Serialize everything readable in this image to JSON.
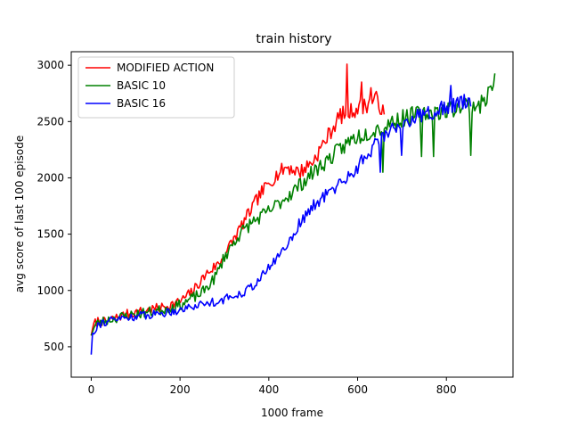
{
  "chart_data": {
    "type": "line",
    "title": "train history",
    "xlabel": "1000 frame",
    "ylabel": "avg score of last 100 episode",
    "xlim": [
      -45,
      950
    ],
    "ylim": [
      230,
      3120
    ],
    "xticks": [
      0,
      200,
      400,
      600,
      800
    ],
    "yticks": [
      500,
      1000,
      1500,
      2000,
      2500,
      3000
    ],
    "grid": false,
    "legend": {
      "position": "upper-left"
    },
    "series": [
      {
        "name": "MODIFIED ACTION",
        "color": "#ff0000",
        "end_x": 660,
        "anchors": [
          [
            0,
            600
          ],
          [
            5,
            700
          ],
          [
            15,
            730
          ],
          [
            30,
            720
          ],
          [
            50,
            750
          ],
          [
            80,
            790
          ],
          [
            120,
            820
          ],
          [
            160,
            850
          ],
          [
            200,
            900
          ],
          [
            230,
            1000
          ],
          [
            260,
            1150
          ],
          [
            290,
            1250
          ],
          [
            320,
            1450
          ],
          [
            350,
            1650
          ],
          [
            380,
            1850
          ],
          [
            410,
            2000
          ],
          [
            440,
            2100
          ],
          [
            470,
            2050
          ],
          [
            500,
            2150
          ],
          [
            530,
            2350
          ],
          [
            560,
            2550
          ],
          [
            590,
            2600
          ],
          [
            620,
            2650
          ],
          [
            645,
            2700
          ],
          [
            660,
            2550
          ]
        ],
        "spikes": [
          [
            577,
            3010
          ],
          [
            610,
            2850
          ],
          [
            630,
            2800
          ]
        ],
        "noise": 55,
        "seed": 7
      },
      {
        "name": "BASIC 10",
        "color": "#008000",
        "end_x": 910,
        "anchors": [
          [
            0,
            600
          ],
          [
            10,
            700
          ],
          [
            30,
            730
          ],
          [
            60,
            760
          ],
          [
            100,
            790
          ],
          [
            150,
            820
          ],
          [
            200,
            870
          ],
          [
            250,
            980
          ],
          [
            280,
            1120
          ],
          [
            300,
            1300
          ],
          [
            330,
            1480
          ],
          [
            360,
            1600
          ],
          [
            400,
            1700
          ],
          [
            430,
            1800
          ],
          [
            460,
            1900
          ],
          [
            500,
            2050
          ],
          [
            530,
            2150
          ],
          [
            560,
            2250
          ],
          [
            590,
            2350
          ],
          [
            620,
            2400
          ],
          [
            650,
            2450
          ],
          [
            680,
            2500
          ],
          [
            720,
            2550
          ],
          [
            760,
            2580
          ],
          [
            800,
            2600
          ],
          [
            840,
            2650
          ],
          [
            880,
            2650
          ],
          [
            910,
            2870
          ]
        ],
        "spikes": [
          [
            658,
            2050
          ],
          [
            743,
            2190
          ],
          [
            770,
            2190
          ],
          [
            855,
            2200
          ]
        ],
        "noise": 60,
        "seed": 23
      },
      {
        "name": "BASIC 16",
        "color": "#0000ff",
        "end_x": 855,
        "anchors": [
          [
            0,
            430
          ],
          [
            3,
            620
          ],
          [
            15,
            700
          ],
          [
            40,
            730
          ],
          [
            80,
            760
          ],
          [
            120,
            780
          ],
          [
            160,
            800
          ],
          [
            200,
            830
          ],
          [
            250,
            880
          ],
          [
            300,
            920
          ],
          [
            350,
            1000
          ],
          [
            380,
            1100
          ],
          [
            410,
            1250
          ],
          [
            440,
            1400
          ],
          [
            470,
            1600
          ],
          [
            500,
            1750
          ],
          [
            530,
            1850
          ],
          [
            560,
            1950
          ],
          [
            590,
            2050
          ],
          [
            620,
            2200
          ],
          [
            650,
            2350
          ],
          [
            680,
            2450
          ],
          [
            710,
            2500
          ],
          [
            740,
            2550
          ],
          [
            780,
            2600
          ],
          [
            820,
            2650
          ],
          [
            855,
            2700
          ]
        ],
        "spikes": [
          [
            650,
            2050
          ],
          [
            700,
            2200
          ],
          [
            810,
            2820
          ]
        ],
        "noise": 50,
        "seed": 91
      }
    ]
  }
}
